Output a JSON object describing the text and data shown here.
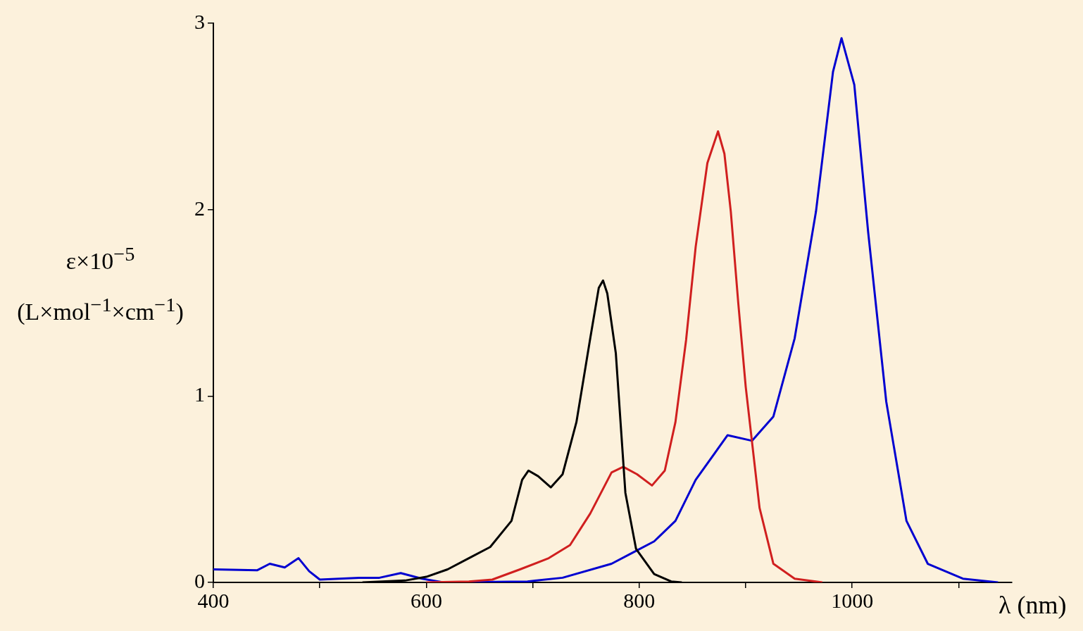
{
  "chart_data": {
    "type": "line",
    "xlabel": "λ (nm)",
    "ylabel": "ε×10$^{−5}$\n(L×mol$^{−1}$×cm$^{−1}$)",
    "xlim": [
      400,
      1150
    ],
    "xticks": [
      400,
      {
        "value": 500,
        "label": null
      },
      600,
      {
        "value": 700,
        "label": null
      },
      800,
      {
        "value": 900,
        "label": null
      },
      1000,
      {
        "value": 1100,
        "label": null
      }
    ],
    "ylim": [
      0,
      3
    ],
    "yticks": [
      0,
      1,
      2,
      3
    ],
    "grid": false,
    "legend": false,
    "marker": "none",
    "line_style": "solid",
    "series": [
      {
        "color": "#000000",
        "x": [
          540,
          580,
          600,
          620,
          640,
          660,
          680,
          690,
          696,
          705,
          717,
          728,
          741,
          754,
          762,
          766,
          770,
          778,
          787,
          797,
          814,
          830,
          840
        ],
        "values": [
          0,
          0.01,
          0.03,
          0.07,
          0.13,
          0.19,
          0.33,
          0.55,
          0.6,
          0.57,
          0.51,
          0.58,
          0.86,
          1.31,
          1.58,
          1.62,
          1.55,
          1.23,
          0.48,
          0.18,
          0.045,
          0.005,
          0
        ]
      },
      {
        "color": "#d01f1f",
        "x": [
          600,
          640,
          662,
          688,
          715,
          735,
          754,
          774,
          785,
          798,
          812,
          824,
          834,
          844,
          853,
          864,
          874,
          880,
          886,
          893,
          900,
          913,
          926,
          946,
          972
        ],
        "values": [
          0,
          0.005,
          0.015,
          0.07,
          0.13,
          0.2,
          0.37,
          0.59,
          0.62,
          0.58,
          0.52,
          0.6,
          0.86,
          1.3,
          1.8,
          2.25,
          2.42,
          2.3,
          1.99,
          1.5,
          1.05,
          0.4,
          0.1,
          0.02,
          0
        ]
      },
      {
        "color": "#0000d0",
        "x": [
          400,
          441,
          453,
          467,
          480,
          490,
          500,
          537,
          556,
          576,
          596,
          616,
          695,
          728,
          774,
          794,
          814,
          834,
          853,
          883,
          906,
          926,
          946,
          966,
          982,
          990,
          1002,
          1015,
          1032,
          1051,
          1071,
          1104,
          1137
        ],
        "values": [
          0.07,
          0.065,
          0.1,
          0.08,
          0.13,
          0.06,
          0.015,
          0.025,
          0.025,
          0.05,
          0.02,
          0,
          0.005,
          0.025,
          0.1,
          0.16,
          0.22,
          0.33,
          0.55,
          0.79,
          0.76,
          0.89,
          1.31,
          1.99,
          2.74,
          2.92,
          2.67,
          1.88,
          0.97,
          0.33,
          0.1,
          0.02,
          0
        ]
      }
    ]
  }
}
